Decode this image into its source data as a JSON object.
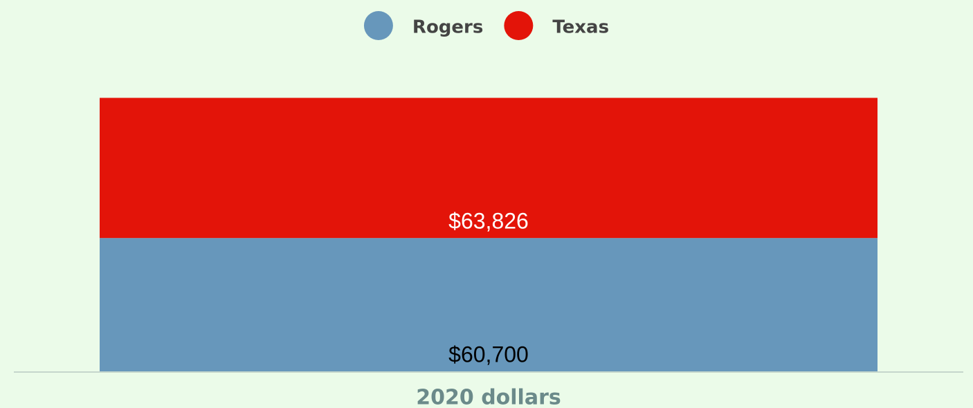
{
  "chart_data": {
    "type": "stacked_bar",
    "categories": [
      "2020 dollars"
    ],
    "series": [
      {
        "name": "Rogers",
        "color": "#6797bb",
        "values": [
          60700
        ],
        "value_labels": [
          "$60,700"
        ]
      },
      {
        "name": "Texas",
        "color": "#e31409",
        "values": [
          63826
        ],
        "value_labels": [
          "$63,826"
        ]
      }
    ],
    "ylim": [
      0,
      125000
    ]
  }
}
